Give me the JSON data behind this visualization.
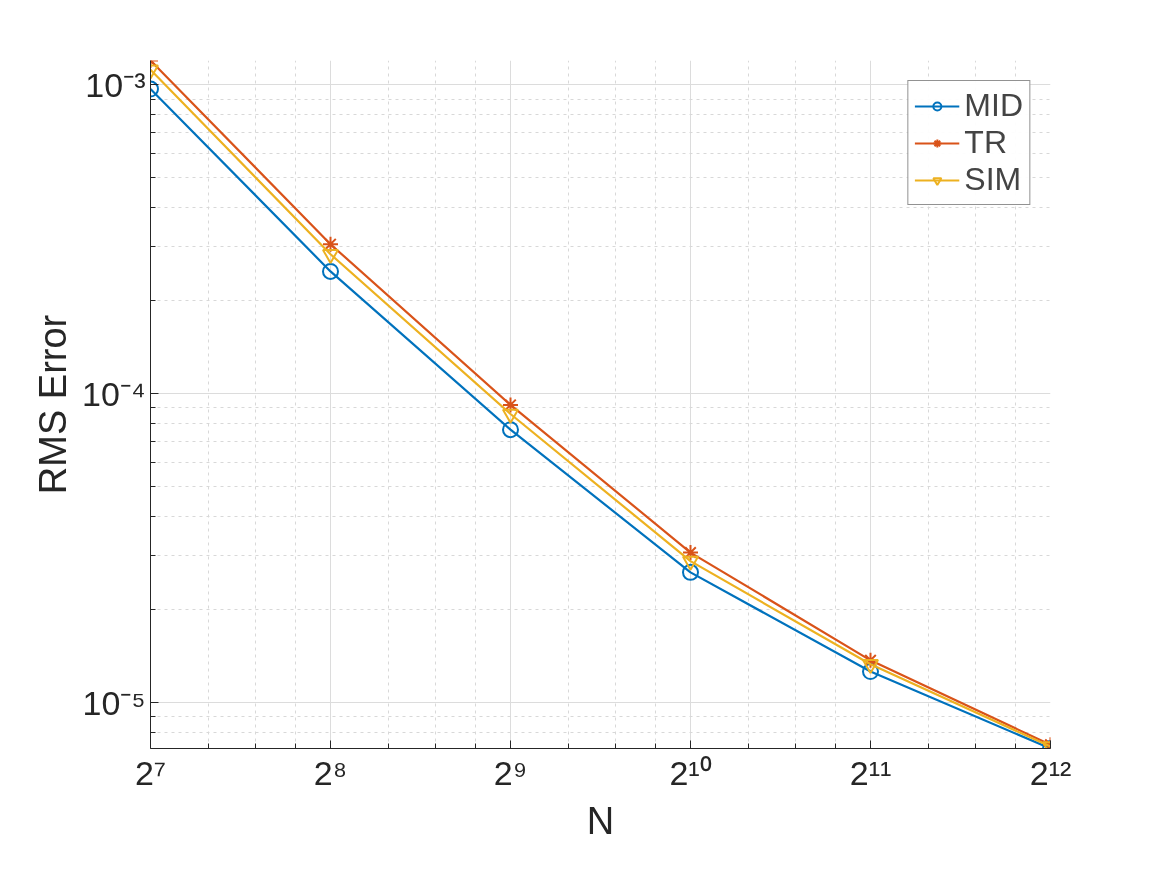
{
  "chart_data": {
    "type": "line",
    "xlabel": "N",
    "ylabel": "RMS Error",
    "log": "xy",
    "grid": true,
    "legend": "top right",
    "x": [
      128,
      256,
      512,
      1024,
      2048,
      4096
    ],
    "xlim": [
      128,
      4096
    ],
    "xticks": [
      {
        "value": 128,
        "label": "2⁷"
      },
      {
        "value": 256,
        "label": "2⁸"
      },
      {
        "value": 512,
        "label": "2⁹"
      },
      {
        "value": 1024,
        "label": "2¹⁰"
      },
      {
        "value": 2048,
        "label": "2¹¹"
      },
      {
        "value": 4096,
        "label": "2¹²"
      }
    ],
    "ylim": [
      7.1e-06,
      0.0012
    ],
    "yticks": [
      {
        "value": 1e-05,
        "label": "10⁻⁵"
      },
      {
        "value": 0.0001,
        "label": "10⁻⁴"
      },
      {
        "value": 0.001,
        "label": "10⁻³"
      }
    ],
    "series": [
      {
        "name": "MID",
        "color": "#0072bd",
        "marker": "circle",
        "values": [
          0.00097,
          0.000249,
          7.65e-05,
          2.64e-05,
          1.26e-05,
          7.1e-06
        ]
      },
      {
        "name": "TR",
        "color": "#d95319",
        "marker": "cross",
        "values": [
          0.0012,
          0.000305,
          9.2e-05,
          3.06e-05,
          1.37e-05,
          7.3e-06
        ]
      },
      {
        "name": "SIM",
        "color": "#edb120",
        "marker": "triangle",
        "values": [
          0.00112,
          0.000283,
          8.6e-05,
          2.87e-05,
          1.33e-05,
          7.2e-06
        ]
      }
    ]
  }
}
